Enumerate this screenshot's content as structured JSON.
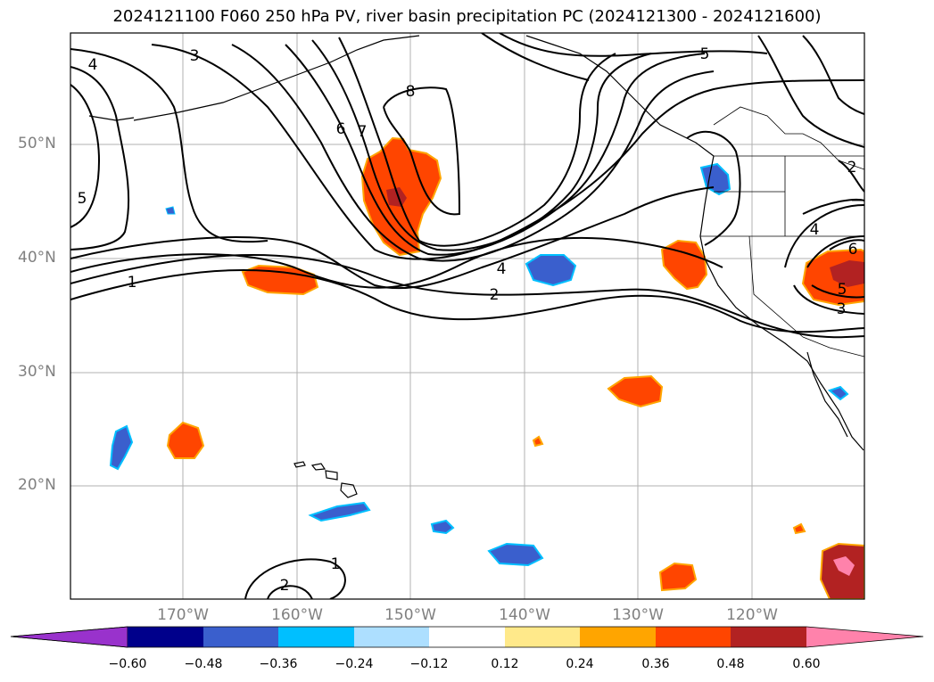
{
  "title": "2024121100 F060 250 hPa PV, river basin precipitation PC (2024121300 - 2024121600)",
  "lat_labels": [
    "50°N",
    "40°N",
    "30°N",
    "20°N"
  ],
  "lon_labels": [
    "170°W",
    "160°W",
    "150°W",
    "140°W",
    "130°W",
    "120°W"
  ],
  "contour_labels": [
    "4",
    "3",
    "5",
    "6",
    "7",
    "8",
    "5",
    "2",
    "1",
    "4",
    "2",
    "3",
    "5",
    "6",
    "4",
    "1",
    "2"
  ],
  "colorbar": {
    "ticks": [
      "−0.60",
      "−0.48",
      "−0.36",
      "−0.24",
      "−0.12",
      "0.12",
      "0.24",
      "0.36",
      "0.48",
      "0.60"
    ],
    "colors": [
      "#9932CC",
      "#00008B",
      "#3A5FCD",
      "#00BFFF",
      "#ADDFFF",
      "#FFFFFF",
      "#FFE98A",
      "#FFA500",
      "#FF4500",
      "#B22222",
      "#FF82AB"
    ]
  }
}
